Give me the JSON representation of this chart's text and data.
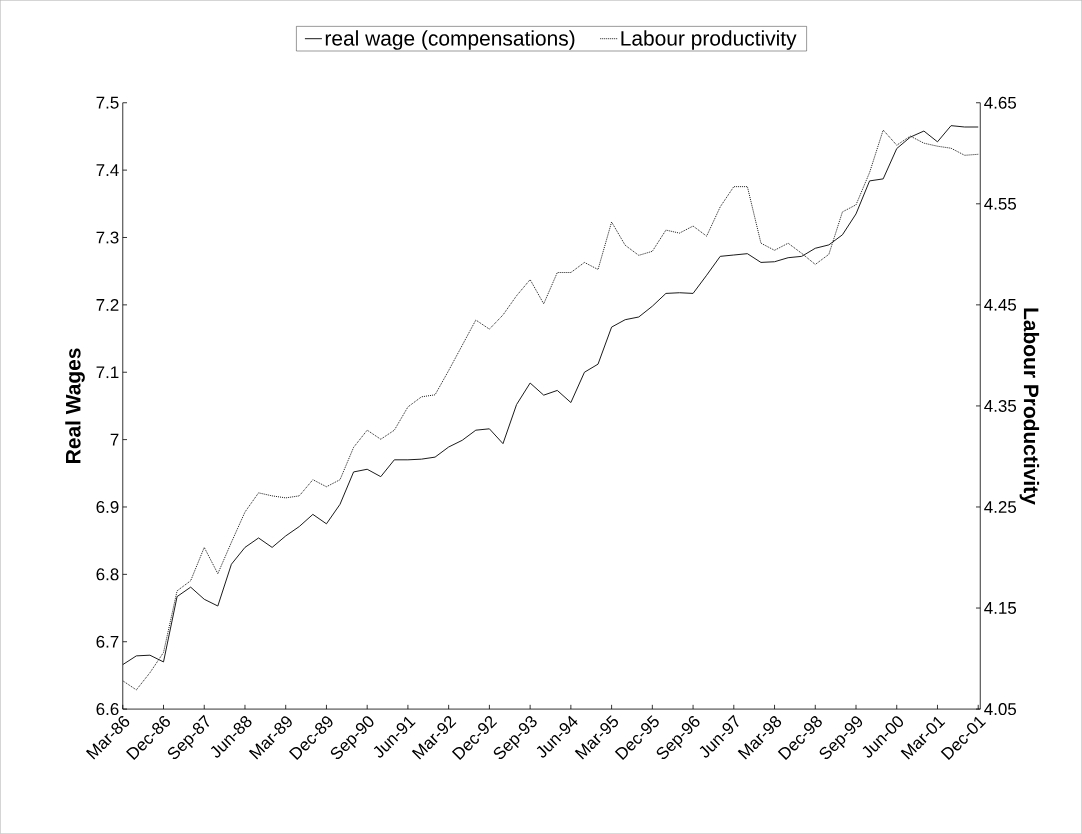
{
  "chart_data": {
    "type": "line",
    "ylabel": "Real Wages",
    "y2label": "Labour Productivity",
    "categories": [
      "Mar-86",
      null,
      null,
      "Dec-86",
      null,
      null,
      "Sep-87",
      null,
      null,
      "Jun-88",
      null,
      null,
      "Mar-89",
      null,
      null,
      "Dec-89",
      null,
      null,
      "Sep-90",
      null,
      null,
      "Jun-91",
      null,
      null,
      "Mar-92",
      null,
      null,
      "Dec-92",
      null,
      null,
      "Sep-93",
      null,
      null,
      "Jun-94",
      null,
      null,
      "Mar-95",
      null,
      null,
      "Dec-95",
      null,
      null,
      "Sep-96",
      null,
      null,
      "Jun-97",
      null,
      null,
      "Mar-98",
      null,
      null,
      "Dec-98",
      null,
      null,
      "Sep-99",
      null,
      null,
      "Jun-00",
      null,
      null,
      "Mar-01",
      null,
      null,
      "Dec-01"
    ],
    "series": [
      {
        "name": "real wage (compensations)",
        "color": "#1a1a1a",
        "line_style": "solid",
        "values": [
          6.666,
          6.679,
          6.68,
          6.67,
          6.767,
          6.781,
          6.763,
          6.753,
          6.815,
          6.84,
          6.854,
          6.84,
          6.857,
          6.871,
          6.889,
          6.875,
          6.904,
          6.952,
          6.956,
          6.945,
          6.97,
          6.97,
          6.971,
          6.974,
          6.989,
          6.999,
          7.014,
          7.016,
          6.994,
          7.052,
          7.084,
          7.066,
          7.073,
          7.055,
          7.1,
          7.112,
          7.167,
          7.178,
          7.182,
          7.198,
          7.217,
          7.218,
          7.217,
          7.244,
          7.272,
          7.274,
          7.276,
          7.263,
          7.264,
          7.27,
          7.272,
          7.284,
          7.289,
          7.304,
          7.335,
          7.384,
          7.387,
          7.432,
          7.449,
          7.458,
          7.442,
          7.466,
          7.464,
          7.464
        ]
      },
      {
        "name": "Labour productivity",
        "color": "#1a1a1a",
        "line_style": "dotted",
        "axis": "y2",
        "values": [
          4.078,
          4.069,
          4.086,
          4.106,
          4.167,
          4.177,
          4.21,
          4.184,
          4.215,
          4.245,
          4.264,
          4.261,
          4.259,
          4.261,
          4.277,
          4.27,
          4.277,
          4.309,
          4.326,
          4.317,
          4.326,
          4.349,
          4.359,
          4.361,
          4.385,
          4.41,
          4.435,
          4.426,
          4.44,
          4.459,
          4.475,
          4.451,
          4.482,
          4.482,
          4.492,
          4.485,
          4.532,
          4.509,
          4.499,
          4.503,
          4.524,
          4.521,
          4.528,
          4.518,
          4.547,
          4.567,
          4.567,
          4.511,
          4.504,
          4.511,
          4.501,
          4.49,
          4.5,
          4.542,
          4.549,
          4.581,
          4.623,
          4.608,
          4.617,
          4.61,
          4.607,
          4.605,
          4.598,
          4.599
        ]
      }
    ],
    "ylim": [
      6.6,
      7.5
    ],
    "yticks": [
      6.6,
      6.7,
      6.8,
      6.9,
      7,
      7.1,
      7.2,
      7.3,
      7.4,
      7.5
    ],
    "y2lim": [
      4.05,
      4.65
    ],
    "y2ticks": [
      4.05,
      4.15,
      4.25,
      4.35,
      4.45,
      4.55,
      4.65
    ],
    "grid": false,
    "legend": "top",
    "marker": "none"
  }
}
